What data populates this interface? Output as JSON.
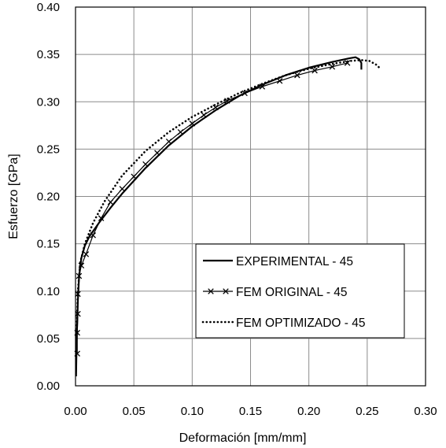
{
  "chart_data": {
    "type": "line",
    "title": "",
    "xlabel": "Deformación [mm/mm]",
    "ylabel": "Esfuerzo [GPa]",
    "xlim": [
      0,
      0.3
    ],
    "ylim": [
      0,
      0.4
    ],
    "x_ticks": [
      "0.00",
      "0.05",
      "0.10",
      "0.15",
      "0.20",
      "0.25",
      "0.30"
    ],
    "y_ticks": [
      "0.00",
      "0.05",
      "0.10",
      "0.15",
      "0.20",
      "0.25",
      "0.30",
      "0.35",
      "0.40"
    ],
    "grid": true,
    "legend_position": "bottom-right",
    "series": [
      {
        "name": "EXPERIMENTAL - 45",
        "style": "solid",
        "color": "#000000",
        "x": [
          0.0005,
          0.001,
          0.002,
          0.003,
          0.005,
          0.008,
          0.012,
          0.02,
          0.03,
          0.04,
          0.06,
          0.08,
          0.1,
          0.12,
          0.14,
          0.16,
          0.18,
          0.2,
          0.22,
          0.235,
          0.24,
          0.243,
          0.245,
          0.245
        ],
        "y": [
          0.01,
          0.05,
          0.09,
          0.115,
          0.135,
          0.148,
          0.158,
          0.172,
          0.188,
          0.203,
          0.23,
          0.254,
          0.274,
          0.291,
          0.306,
          0.318,
          0.328,
          0.336,
          0.342,
          0.346,
          0.347,
          0.345,
          0.341,
          0.334
        ]
      },
      {
        "name": "FEM ORIGINAL - 45",
        "style": "solid-x",
        "color": "#000000",
        "x": [
          0.0015,
          0.0015,
          0.002,
          0.002,
          0.003,
          0.005,
          0.009,
          0.015,
          0.022,
          0.03,
          0.04,
          0.05,
          0.06,
          0.07,
          0.08,
          0.09,
          0.1,
          0.11,
          0.12,
          0.13,
          0.145,
          0.16,
          0.175,
          0.19,
          0.205,
          0.22,
          0.233
        ],
        "y": [
          0.034,
          0.056,
          0.076,
          0.097,
          0.116,
          0.127,
          0.139,
          0.159,
          0.177,
          0.194,
          0.208,
          0.221,
          0.234,
          0.246,
          0.258,
          0.268,
          0.277,
          0.286,
          0.294,
          0.301,
          0.309,
          0.316,
          0.322,
          0.328,
          0.333,
          0.337,
          0.341
        ]
      },
      {
        "name": "FEM OPTIMIZADO - 45",
        "style": "dotted",
        "color": "#000000",
        "x": [
          0.001,
          0.002,
          0.004,
          0.008,
          0.015,
          0.025,
          0.04,
          0.06,
          0.08,
          0.1,
          0.12,
          0.14,
          0.16,
          0.18,
          0.2,
          0.22,
          0.235,
          0.245,
          0.252,
          0.258,
          0.262
        ],
        "y": [
          0.06,
          0.1,
          0.13,
          0.15,
          0.172,
          0.195,
          0.222,
          0.248,
          0.268,
          0.284,
          0.297,
          0.309,
          0.319,
          0.328,
          0.335,
          0.34,
          0.343,
          0.344,
          0.343,
          0.339,
          0.334
        ]
      }
    ]
  }
}
